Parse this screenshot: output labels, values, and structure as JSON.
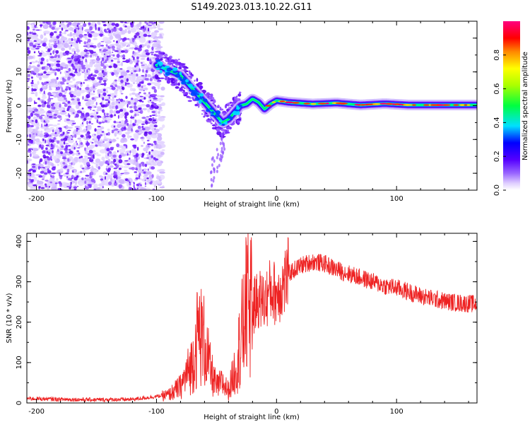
{
  "title": "S149.2023.013.10.22.G11",
  "chart_data": [
    {
      "type": "heatmap",
      "xlabel": "Height of straight line (km)",
      "ylabel": "Frequency (Hz)",
      "xlim": [
        -208,
        167
      ],
      "ylim": [
        -25,
        25
      ],
      "x_ticks": [
        -200,
        -100,
        0,
        100
      ],
      "y_ticks": [
        -20,
        -10,
        0,
        10,
        20
      ],
      "colorbar": {
        "label": "Normalized spectral amplitude",
        "range": [
          0,
          1
        ],
        "ticks": [
          "0.0",
          "0.2",
          "0.4",
          "0.6",
          "0.8"
        ]
      },
      "ridge": {
        "x": [
          -100,
          -90,
          -80,
          -70,
          -60,
          -50,
          -45,
          -40,
          -35,
          -30,
          -25,
          -20,
          -15,
          -10,
          -5,
          0,
          10,
          30,
          50,
          70,
          90,
          110,
          130,
          150,
          167
        ],
        "y": [
          12,
          10.5,
          9,
          5,
          1,
          -3,
          -5,
          -4,
          -2,
          0,
          0.5,
          2,
          1,
          -1,
          0.5,
          1.5,
          1,
          0.5,
          0.8,
          0.2,
          0.6,
          0.2,
          0.2,
          0.2,
          0.2
        ]
      }
    },
    {
      "type": "line",
      "xlabel": "Height of straight line (km)",
      "ylabel": "SNR (10 * v/v)",
      "xlim": [
        -208,
        167
      ],
      "ylim": [
        0,
        420
      ],
      "x_ticks": [
        -200,
        -100,
        0,
        100
      ],
      "y_ticks": [
        0,
        100,
        200,
        300,
        400
      ],
      "color": "#ee2222",
      "envelope": {
        "x": [
          -208,
          -180,
          -150,
          -120,
          -100,
          -90,
          -80,
          -70,
          -65,
          -60,
          -55,
          -50,
          -45,
          -40,
          -35,
          -30,
          -25,
          -20,
          -15,
          -10,
          -5,
          0,
          5,
          10,
          20,
          30,
          40,
          50,
          60,
          70,
          80,
          90,
          100,
          110,
          120,
          130,
          140,
          150,
          160,
          167
        ],
        "y": [
          10,
          8,
          7,
          8,
          15,
          20,
          40,
          100,
          180,
          150,
          80,
          40,
          50,
          30,
          80,
          150,
          240,
          230,
          260,
          250,
          280,
          270,
          290,
          320,
          340,
          350,
          345,
          330,
          320,
          310,
          300,
          290,
          285,
          275,
          265,
          258,
          252,
          248,
          246,
          245
        ]
      }
    }
  ]
}
